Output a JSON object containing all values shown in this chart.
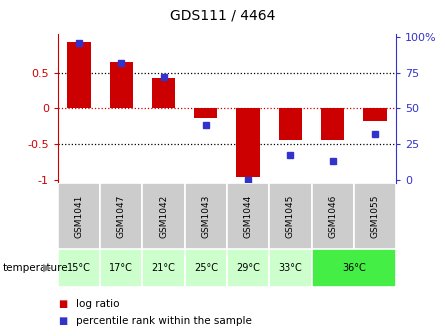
{
  "title": "GDS111 / 4464",
  "samples": [
    "GSM1041",
    "GSM1047",
    "GSM1042",
    "GSM1043",
    "GSM1044",
    "GSM1045",
    "GSM1046",
    "GSM1055"
  ],
  "temperatures": [
    "15°C",
    "17°C",
    "21°C",
    "25°C",
    "29°C",
    "33°C",
    "36°C"
  ],
  "temp_col_spans": [
    1,
    1,
    1,
    1,
    1,
    1,
    2
  ],
  "log_ratio": [
    0.93,
    0.65,
    0.42,
    -0.13,
    -0.97,
    -0.45,
    -0.45,
    -0.18
  ],
  "percentile": [
    0.96,
    0.82,
    0.72,
    0.38,
    0.0,
    0.17,
    0.13,
    0.32
  ],
  "bar_color": "#cc0000",
  "dot_color": "#3333cc",
  "temp_bg_light": "#ccffcc",
  "temp_bg_bright": "#44ee44",
  "gsm_bg": "#cccccc",
  "zero_line_color": "#cc0000",
  "dot_line_color": "#000000",
  "ylim": [
    -1.05,
    1.05
  ],
  "yticks": [
    -1,
    -0.5,
    0,
    0.5
  ],
  "ytick_labels": [
    "-1",
    "-0.5",
    "0",
    "0.5"
  ],
  "right_yticks": [
    0,
    25,
    50,
    75,
    100
  ],
  "right_ytick_labels": [
    "0",
    "25",
    "50",
    "75",
    "100%"
  ]
}
